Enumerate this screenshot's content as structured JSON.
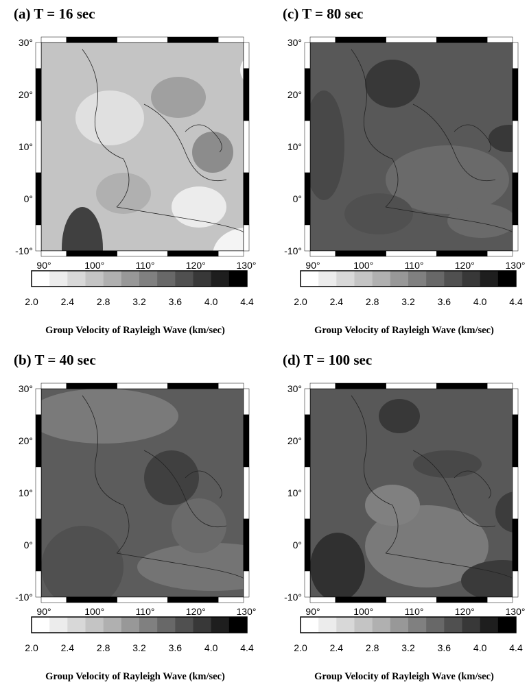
{
  "panels": [
    {
      "title": "(a) T = 16 sec"
    },
    {
      "title": "(c) T = 80 sec"
    },
    {
      "title": "(b) T = 40 sec"
    },
    {
      "title": "(d) T = 100 sec"
    }
  ],
  "axes": {
    "lon_ticks": [
      "90°",
      "100°",
      "110°",
      "120°",
      "130°"
    ],
    "lat_ticks": [
      "30°",
      "20°",
      "10°",
      "0°",
      "-10°"
    ]
  },
  "colorbar": {
    "ticks": [
      "2.0",
      "2.4",
      "2.8",
      "3.2",
      "3.6",
      "4.0",
      "4.4"
    ],
    "label": "Group Velocity of Rayleigh Wave (km/sec)"
  }
}
